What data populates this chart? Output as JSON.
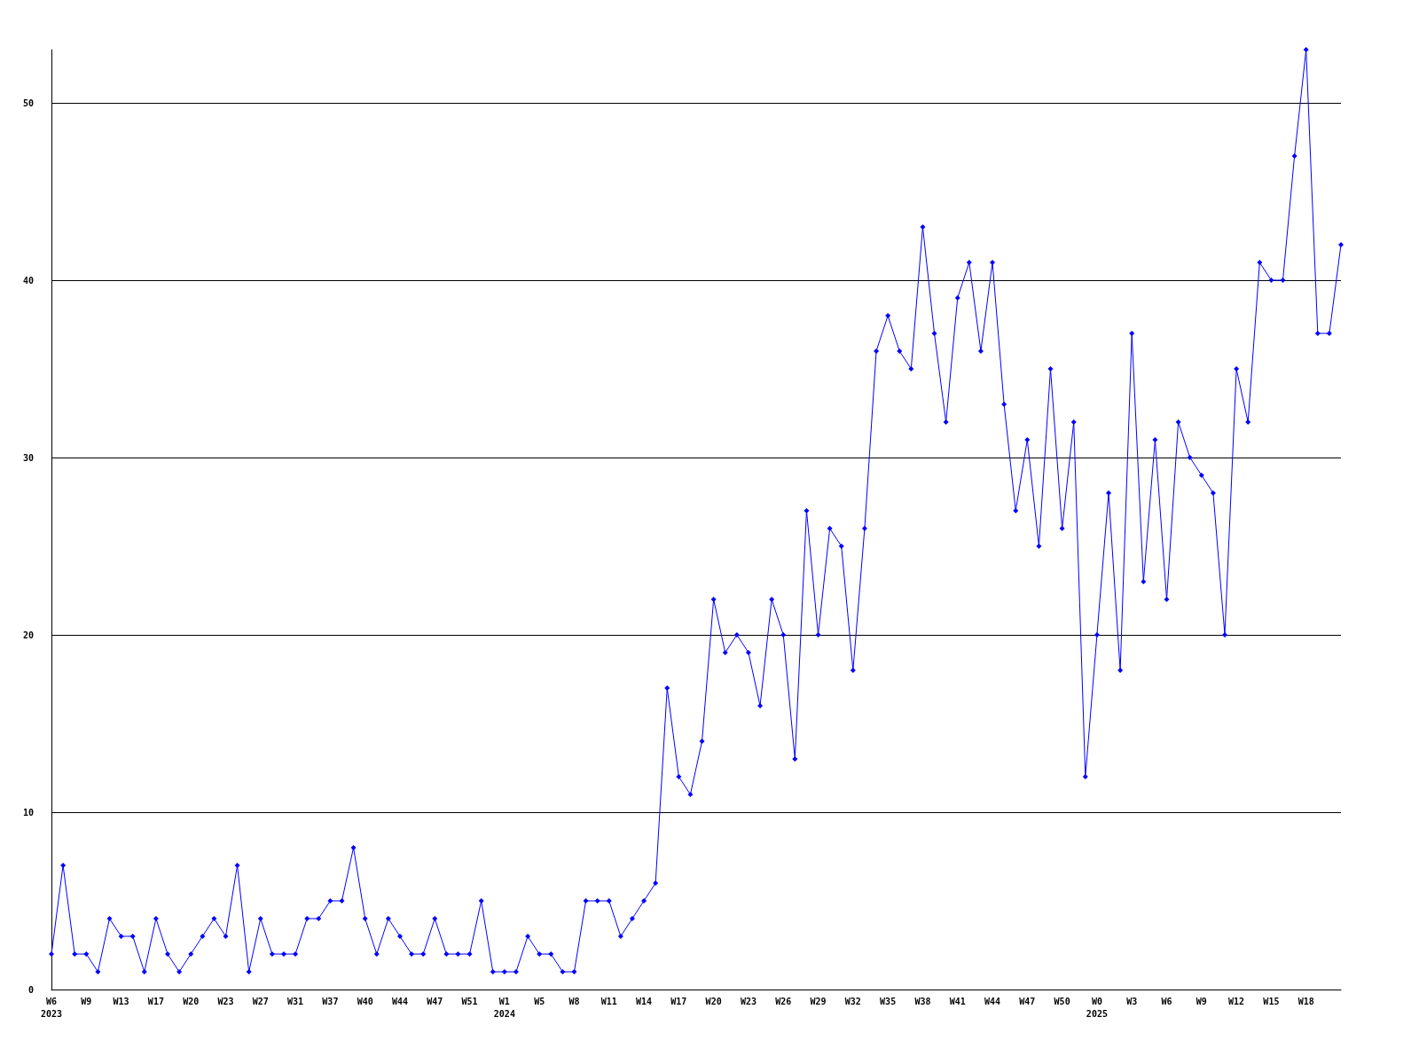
{
  "chart_data": {
    "type": "line",
    "categories": [
      "W6\n2023",
      null,
      null,
      "W9",
      null,
      null,
      "W13",
      null,
      null,
      "W17",
      null,
      null,
      "W20",
      null,
      null,
      "W23",
      null,
      null,
      "W27",
      null,
      null,
      "W31",
      null,
      null,
      "W37",
      null,
      null,
      "W40",
      null,
      null,
      "W44",
      null,
      null,
      "W47",
      null,
      null,
      "W51",
      null,
      null,
      "W1\n2024",
      null,
      null,
      "W5",
      null,
      null,
      "W8",
      null,
      null,
      "W11",
      null,
      null,
      "W14",
      null,
      null,
      "W17",
      null,
      null,
      "W20",
      null,
      null,
      "W23",
      null,
      null,
      "W26",
      null,
      null,
      "W29",
      null,
      null,
      "W32",
      null,
      null,
      "W35",
      null,
      null,
      "W38",
      null,
      null,
      "W41",
      null,
      null,
      "W44",
      null,
      null,
      "W47",
      null,
      null,
      "W50",
      null,
      null,
      "W0\n2025",
      null,
      null,
      "W3",
      null,
      null,
      "W6",
      null,
      null,
      "W9",
      null,
      null,
      "W12",
      null,
      null,
      "W15",
      null,
      null,
      "W18",
      null,
      null,
      null
    ],
    "series": [
      {
        "color": "#0000ff",
        "values": [
          2,
          7,
          2,
          2,
          1,
          4,
          3,
          3,
          1,
          4,
          2,
          1,
          2,
          3,
          4,
          3,
          7,
          1,
          4,
          2,
          2,
          2,
          4,
          4,
          5,
          5,
          8,
          4,
          2,
          4,
          3,
          2,
          2,
          4,
          2,
          2,
          2,
          5,
          1,
          1,
          1,
          3,
          2,
          2,
          1,
          1,
          5,
          5,
          5,
          3,
          4,
          5,
          6,
          17,
          12,
          11,
          14,
          22,
          19,
          20,
          19,
          16,
          22,
          20,
          13,
          27,
          20,
          26,
          25,
          18,
          26,
          36,
          38,
          36,
          35,
          43,
          37,
          32,
          39,
          41,
          36,
          41,
          33,
          27,
          31,
          25,
          35,
          26,
          32,
          12,
          20,
          28,
          18,
          37,
          23,
          31,
          22,
          32,
          30,
          29,
          28,
          20,
          35,
          32,
          41,
          40,
          40,
          47,
          53,
          37,
          37,
          42
        ]
      }
    ],
    "ylim": [
      0,
      53
    ],
    "yticks": [
      0,
      10,
      20,
      30,
      40,
      50
    ],
    "grid": "y",
    "marker": "diamond",
    "line_style": "solid"
  }
}
